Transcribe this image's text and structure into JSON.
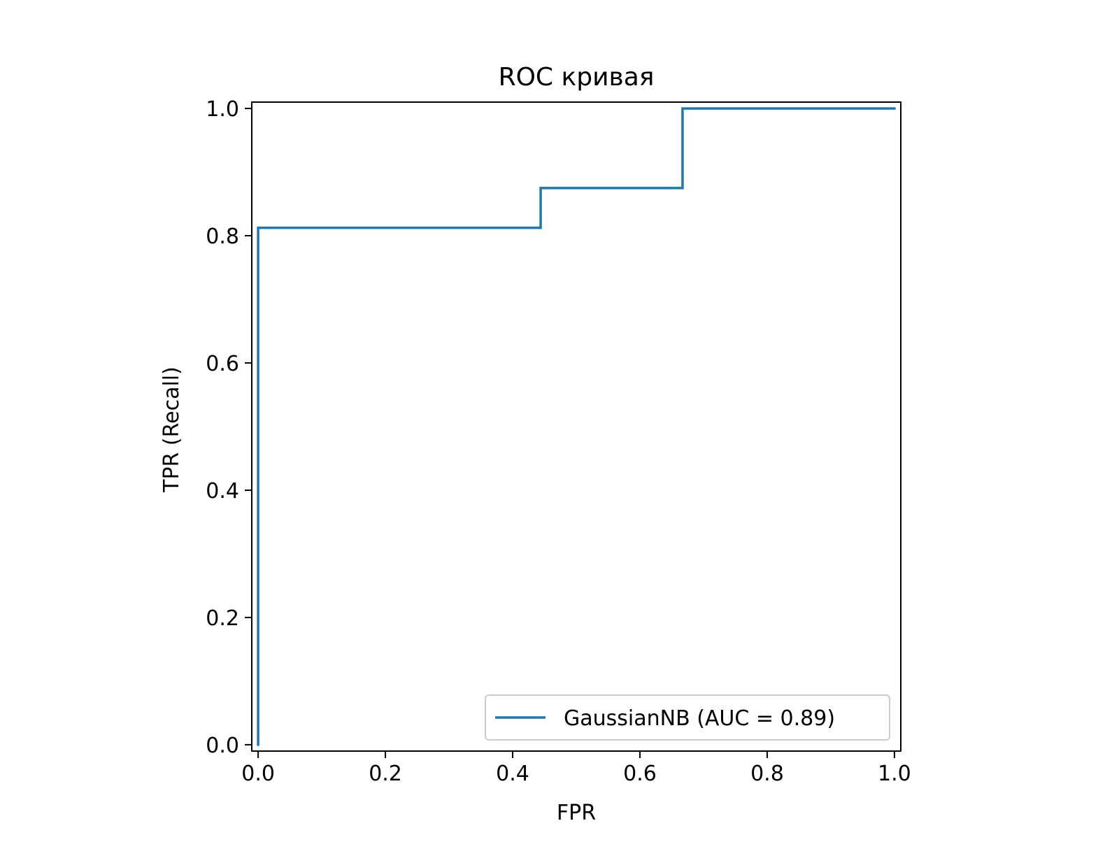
{
  "chart_data": {
    "type": "line",
    "title": "ROC кривая",
    "xlabel": "FPR",
    "ylabel": "TPR (Recall)",
    "xlim": [
      -0.01,
      1.01
    ],
    "ylim": [
      -0.01,
      1.01
    ],
    "xticks": [
      0.0,
      0.2,
      0.4,
      0.6,
      0.8,
      1.0
    ],
    "xtick_labels": [
      "0.0",
      "0.2",
      "0.4",
      "0.6",
      "0.8",
      "1.0"
    ],
    "yticks": [
      0.0,
      0.2,
      0.4,
      0.6,
      0.8,
      1.0
    ],
    "ytick_labels": [
      "0.0",
      "0.2",
      "0.4",
      "0.6",
      "0.8",
      "1.0"
    ],
    "grid": false,
    "legend_position": "lower-right",
    "series": [
      {
        "name": "GaussianNB (AUC = 0.89)",
        "color": "#1f77b4",
        "x": [
          0.0,
          0.0,
          0.0,
          0.444,
          0.444,
          0.667,
          0.667,
          1.0
        ],
        "y": [
          0.0,
          0.0625,
          0.8125,
          0.8125,
          0.875,
          0.875,
          1.0,
          1.0
        ]
      }
    ]
  }
}
